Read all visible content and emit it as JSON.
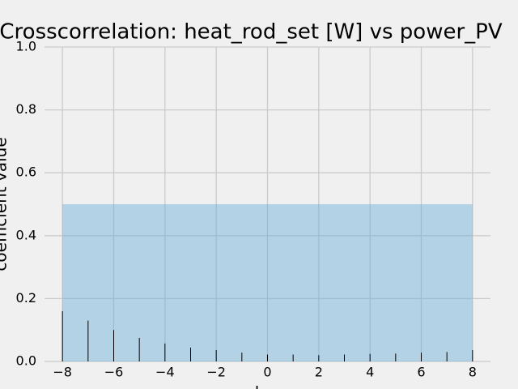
{
  "chart_data": {
    "type": "stem",
    "title": "Crosscorrelation: heat_rod_set [W] vs power_PV",
    "x_label": "lag",
    "y_label": "coefficient value",
    "x": [
      -8,
      -7,
      -6,
      -5,
      -4,
      -3,
      -2,
      -1,
      0,
      1,
      2,
      3,
      4,
      5,
      6,
      7,
      8
    ],
    "values": [
      0.16,
      0.13,
      0.1,
      0.075,
      0.057,
      0.044,
      0.036,
      0.028,
      0.022,
      0.022,
      0.02,
      0.022,
      0.024,
      0.025,
      0.028,
      0.03,
      0.036
    ],
    "color": "#000000",
    "band": {
      "x": [
        -8,
        8
      ],
      "y": [
        0,
        0.5
      ],
      "color": "#6baed6"
    },
    "xlim": [
      -8.7,
      8.7
    ],
    "ylim": [
      0,
      1
    ],
    "xticks": [
      {
        "value": -8,
        "label": "−8"
      },
      {
        "value": -6,
        "label": "−6"
      },
      {
        "value": -4,
        "label": "−4"
      },
      {
        "value": -2,
        "label": "−2"
      },
      0,
      2,
      4,
      6,
      8
    ],
    "yticks": [
      {
        "value": 0,
        "label": "0.0"
      },
      {
        "value": 0.2,
        "label": "0.2"
      },
      {
        "value": 0.4,
        "label": "0.4"
      },
      {
        "value": 0.6,
        "label": "0.6"
      },
      {
        "value": 0.8,
        "label": "0.8"
      },
      {
        "value": 1,
        "label": "1.0"
      }
    ],
    "grid": true
  }
}
